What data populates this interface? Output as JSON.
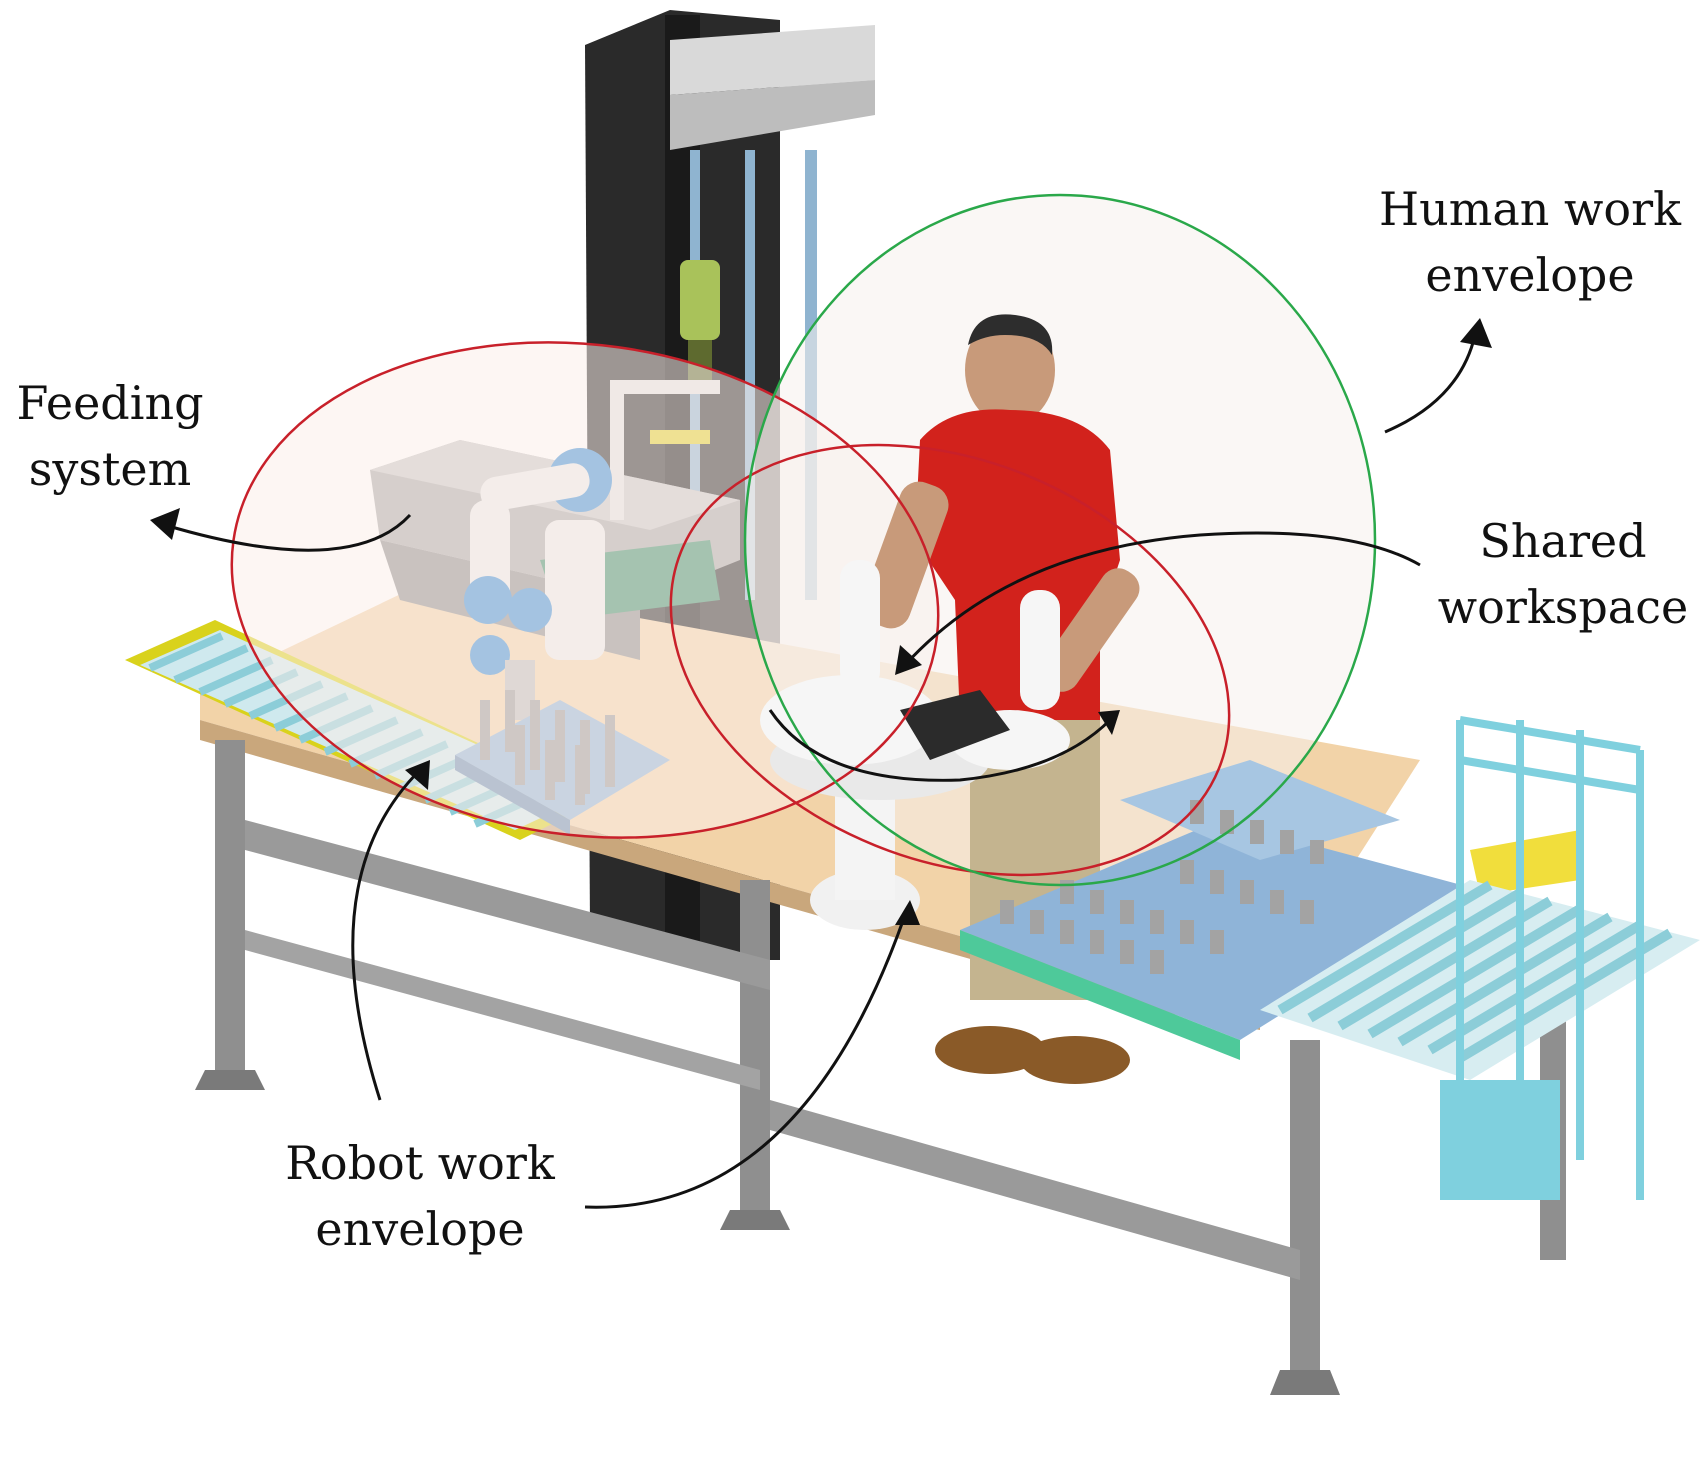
{
  "labels": {
    "feeding": {
      "line1": "Feeding",
      "line2": "system"
    },
    "human": {
      "line1": "Human work",
      "line2": "envelope"
    },
    "shared": {
      "line1": "Shared",
      "line2": "workspace"
    },
    "robot": {
      "line1": "Robot work",
      "line2": "envelope"
    }
  },
  "colors": {
    "robot_envelope": "#c8202a",
    "human_envelope": "#2aa84a",
    "envelope_fill": "#fbefe9",
    "tabletop": "#f2d3a8",
    "table_frame": "#8f8f8f",
    "tower": "#2a2a2a",
    "conveyor_roller": "#a8dfe6",
    "conveyor_rail_yellow": "#d9d21c",
    "operator_shirt": "#d2221c",
    "robot_joint": "#3a8fd8",
    "robot_arm": "#ececec",
    "tray_blue": "#8fb4d8",
    "rack_cyan": "#7fd0de"
  },
  "icons": {
    "operator": "person-icon",
    "cobot_left": "robot-arm-icon",
    "cobot_center": "robot-arm-icon"
  }
}
